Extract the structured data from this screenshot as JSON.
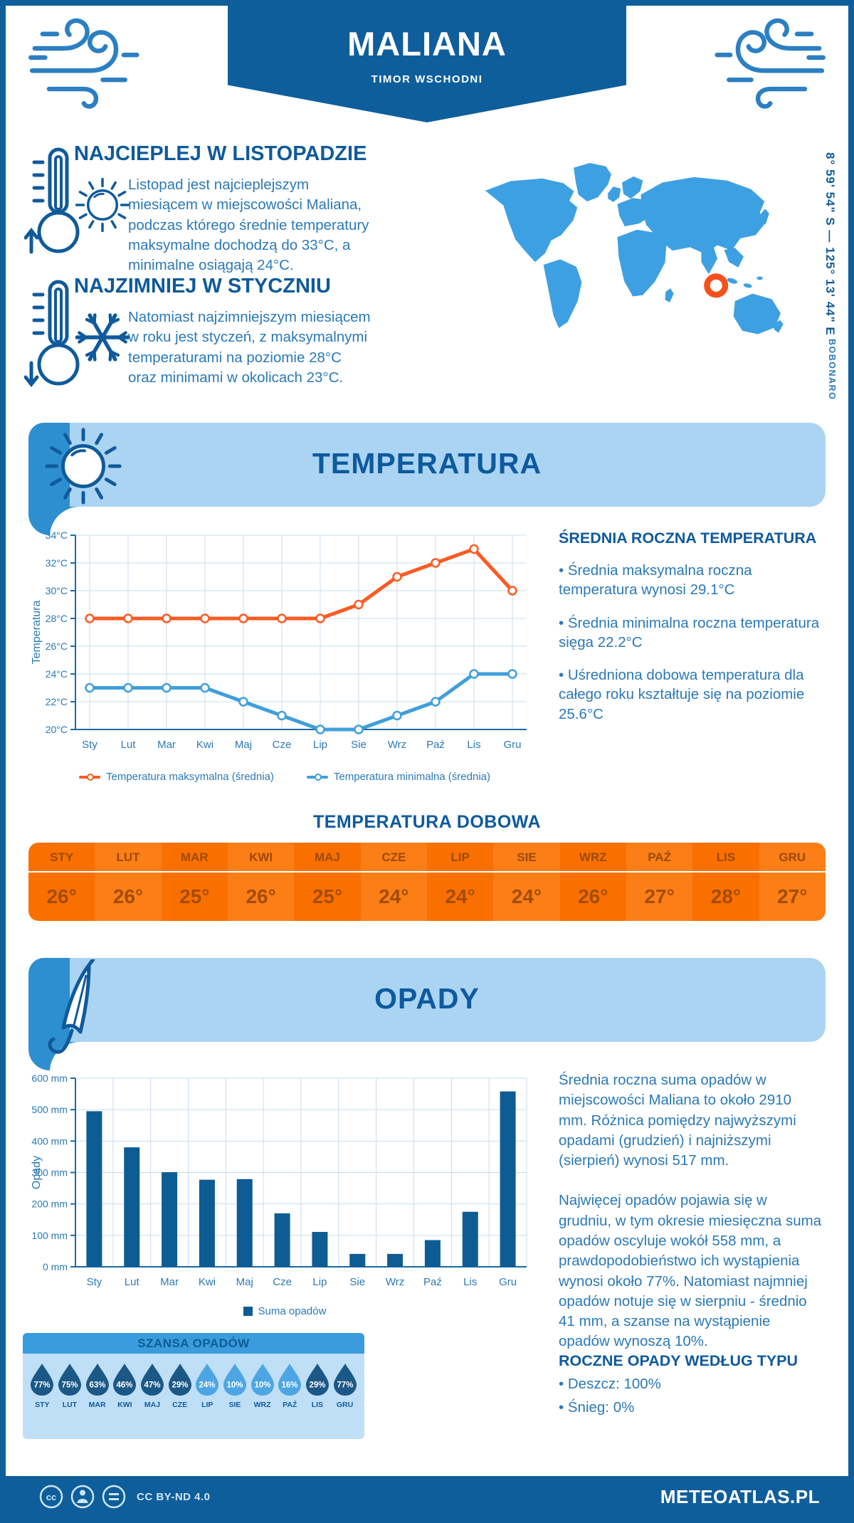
{
  "theme": {
    "dark_blue": "#0f5e9c",
    "medium_blue": "#2e8fd0",
    "banner_light_blue": "#abd4f3",
    "chance_panel_blue": "#bfdff7",
    "chance_bar_blue": "#3a9bdd",
    "heading_blue": "#0f5a9b",
    "text_blue": "#2a79b8",
    "map_blue": "#3da0e2",
    "marker_orange": "#f8501d",
    "table_orange_dark": "#fa7000",
    "table_orange_light": "#fb7e17",
    "table_text_brown": "#a34c00",
    "grid_blue": "#ccdcee",
    "axis_blue": "#1a6aa5"
  },
  "header": {
    "title": "MALIANA",
    "subtitle": "TIMOR WSCHODNI"
  },
  "highlights": {
    "warm": {
      "title": "NAJCIEPLEJ W LISTOPADZIE",
      "text": "Listopad jest najcieplejszym miesiącem w miejscowości Maliana, podczas którego średnie temperatury maksymalne dochodzą do 33°C, a minimalne osiągają 24°C."
    },
    "cold": {
      "title": "NAJZIMNIEJ W STYCZNIU",
      "text": "Natomiast najzimniejszym miesiącem w roku jest styczeń, z maksymalnymi temperaturami na poziomie 28°C oraz minimami w okolicach 23°C."
    }
  },
  "map": {
    "coordinates": "8° 59' 54\" S — 125° 13' 44\" E",
    "region": "BOBONARO"
  },
  "temperature_section": {
    "title": "TEMPERATURA",
    "annual": {
      "title": "ŚREDNIA ROCZNA TEMPERATURA",
      "bullets": [
        "• Średnia maksymalna roczna temperatura wynosi 29.1°C",
        "• Średnia minimalna roczna temperatura sięga 22.2°C",
        "• Uśredniona dobowa temperatura dla całego roku kształtuje się na poziomie 25.6°C"
      ]
    },
    "daily": {
      "title": "TEMPERATURA DOBOWA",
      "months": [
        "STY",
        "LUT",
        "MAR",
        "KWI",
        "MAJ",
        "CZE",
        "LIP",
        "SIE",
        "WRZ",
        "PAŹ",
        "LIS",
        "GRU"
      ],
      "values": [
        "26°",
        "26°",
        "25°",
        "26°",
        "25°",
        "24°",
        "24°",
        "24°",
        "26°",
        "27°",
        "28°",
        "27°"
      ]
    }
  },
  "precipitation_section": {
    "title": "OPADY",
    "paragraphs": [
      "Średnia roczna suma opadów w miejscowości Maliana to około 2910 mm. Różnica pomiędzy najwyższymi opadami (grudzień) i najniższymi (sierpień) wynosi 517 mm.",
      "Najwięcej opadów pojawia się w grudniu, w tym okresie miesięczna suma opadów oscyluje wokół 558 mm, a prawdopodobieństwo ich wystąpienia wynosi około 77%. Natomiast najmniej opadów notuje się w sierpniu - średnio 41 mm, a szanse na wystąpienie opadów wynoszą 10%."
    ],
    "types": {
      "title": "ROCZNE OPADY WEDŁUG TYPU",
      "bullets": [
        "• Deszcz: 100%",
        "• Śnieg: 0%"
      ]
    },
    "chance": {
      "title": "SZANSA OPADÓW",
      "months": [
        "STY",
        "LUT",
        "MAR",
        "KWI",
        "MAJ",
        "CZE",
        "LIP",
        "SIE",
        "WRZ",
        "PAŹ",
        "LIS",
        "GRU"
      ],
      "values": [
        "77%",
        "75%",
        "63%",
        "46%",
        "47%",
        "29%",
        "24%",
        "10%",
        "10%",
        "16%",
        "29%",
        "77%"
      ],
      "dark": [
        1,
        1,
        1,
        1,
        1,
        1,
        0,
        0,
        0,
        0,
        1,
        1
      ],
      "drop_dark_color": "#1b5885",
      "drop_light_color": "#4da6e3"
    }
  },
  "footer": {
    "license": "CC BY-ND 4.0",
    "site": "METEOATLAS.PL"
  },
  "chart_data": [
    {
      "type": "line",
      "categories": [
        "Sty",
        "Lut",
        "Mar",
        "Kwi",
        "Maj",
        "Cze",
        "Lip",
        "Sie",
        "Wrz",
        "Paź",
        "Lis",
        "Gru"
      ],
      "series": [
        {
          "name": "Temperatura maksymalna (średnia)",
          "color": "#fa5b22",
          "values": [
            28,
            28,
            28,
            28,
            28,
            28,
            28,
            29,
            31,
            32,
            33,
            30
          ]
        },
        {
          "name": "Temperatura minimalna (średnia)",
          "color": "#3f9fdb",
          "values": [
            23,
            23,
            23,
            23,
            22,
            21,
            20,
            20,
            21,
            22,
            24,
            24
          ]
        }
      ],
      "title": "",
      "xlabel": "",
      "ylabel": "Temperatura",
      "ylim": [
        20,
        34
      ],
      "ystep": 2,
      "yunit": "°C",
      "grid": true,
      "legend_position": "bottom"
    },
    {
      "type": "bar",
      "categories": [
        "Sty",
        "Lut",
        "Mar",
        "Kwi",
        "Maj",
        "Cze",
        "Lip",
        "Sie",
        "Wrz",
        "Paź",
        "Lis",
        "Gru"
      ],
      "values": [
        495,
        380,
        301,
        277,
        279,
        170,
        111,
        41,
        41,
        85,
        175,
        558
      ],
      "series_name": "Suma opadów",
      "color": "#0d5c94",
      "title": "",
      "xlabel": "",
      "ylabel": "Opady",
      "ylim": [
        0,
        600
      ],
      "ystep": 100,
      "yunit": " mm",
      "grid": true,
      "legend_position": "bottom"
    }
  ]
}
